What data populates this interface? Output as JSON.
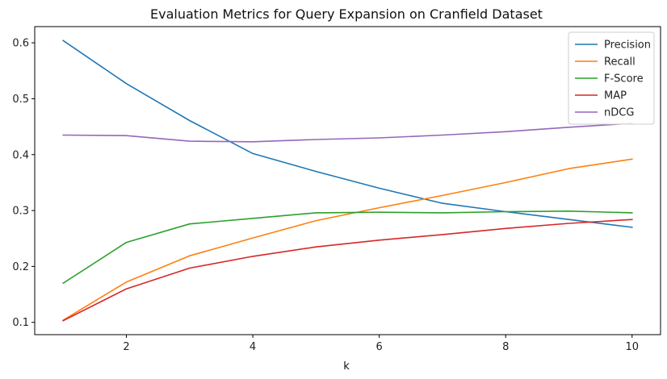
{
  "chart_data": {
    "type": "line",
    "title": "Evaluation Metrics for Query Expansion on Cranfield Dataset",
    "xlabel": "k",
    "ylabel": "",
    "x": [
      1,
      2,
      3,
      4,
      5,
      6,
      7,
      8,
      9,
      10
    ],
    "xlim": [
      0.55,
      10.45
    ],
    "ylim": [
      0.078,
      0.629
    ],
    "xticks": [
      2,
      4,
      6,
      8,
      10
    ],
    "yticks": [
      0.1,
      0.2,
      0.3,
      0.4,
      0.5,
      0.6
    ],
    "xtick_labels": [
      "2",
      "4",
      "6",
      "8",
      "10"
    ],
    "ytick_labels": [
      "0.1",
      "0.2",
      "0.3",
      "0.4",
      "0.5",
      "0.6"
    ],
    "grid": false,
    "legend_position": "top-right",
    "series": [
      {
        "name": "Precision",
        "color": "#1f77b4",
        "values": [
          0.604,
          0.527,
          0.461,
          0.402,
          0.37,
          0.34,
          0.313,
          0.298,
          0.284,
          0.27
        ]
      },
      {
        "name": "Recall",
        "color": "#ff7f0e",
        "values": [
          0.104,
          0.172,
          0.219,
          0.251,
          0.282,
          0.305,
          0.327,
          0.35,
          0.375,
          0.392
        ]
      },
      {
        "name": "F-Score",
        "color": "#2ca02c",
        "values": [
          0.17,
          0.243,
          0.276,
          0.286,
          0.296,
          0.297,
          0.296,
          0.298,
          0.299,
          0.296
        ]
      },
      {
        "name": "MAP",
        "color": "#d62728",
        "values": [
          0.103,
          0.16,
          0.197,
          0.218,
          0.235,
          0.247,
          0.257,
          0.268,
          0.277,
          0.284
        ]
      },
      {
        "name": "nDCG",
        "color": "#9467bd",
        "values": [
          0.435,
          0.434,
          0.424,
          0.423,
          0.427,
          0.43,
          0.435,
          0.441,
          0.449,
          0.456
        ]
      }
    ]
  }
}
